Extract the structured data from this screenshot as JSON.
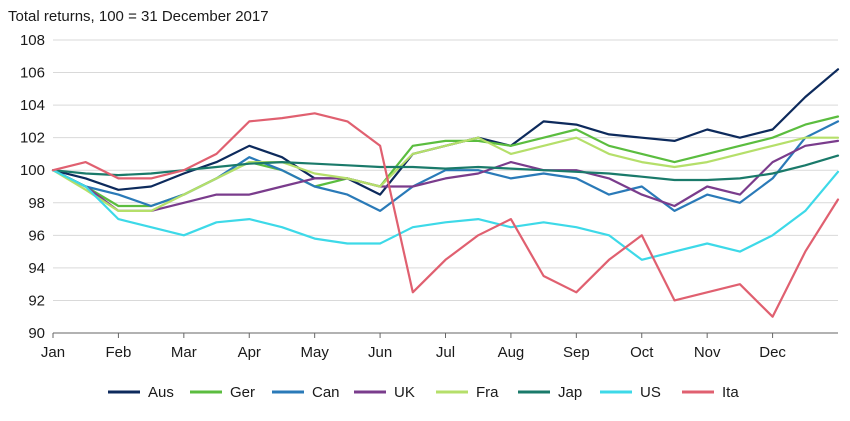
{
  "chart_data": {
    "type": "line",
    "subtitle": "Total returns, 100 = 31 December 2017",
    "xlabel": "",
    "ylabel": "",
    "ylim": [
      90,
      108
    ],
    "yticks": [
      90,
      92,
      94,
      96,
      98,
      100,
      102,
      104,
      106,
      108
    ],
    "x_ticklabels": [
      "Jan",
      "Feb",
      "Mar",
      "Apr",
      "May",
      "Jun",
      "Jul",
      "Aug",
      "Sep",
      "Oct",
      "Nov",
      "Dec"
    ],
    "grid": "horizontal",
    "legend": "bottom",
    "x": [
      "Jan-01",
      "Jan-15",
      "Feb-01",
      "Feb-15",
      "Mar-01",
      "Mar-15",
      "Apr-01",
      "Apr-15",
      "May-01",
      "May-15",
      "Jun-01",
      "Jun-15",
      "Jul-01",
      "Jul-15",
      "Aug-01",
      "Aug-15",
      "Sep-01",
      "Sep-15",
      "Oct-01",
      "Oct-15",
      "Nov-01",
      "Nov-15",
      "Dec-01",
      "Dec-15",
      "Dec-31"
    ],
    "series": [
      {
        "name": "Aus",
        "color": "#0d2a5c",
        "values": [
          100.0,
          99.5,
          98.8,
          99.0,
          99.8,
          100.5,
          101.5,
          100.8,
          99.5,
          99.5,
          98.5,
          101.0,
          101.5,
          102.0,
          101.5,
          103.0,
          102.8,
          102.2,
          102.0,
          101.8,
          102.5,
          102.0,
          102.5,
          104.5,
          106.2
        ]
      },
      {
        "name": "Ger",
        "color": "#5bbd3f",
        "values": [
          100.0,
          99.0,
          97.8,
          97.8,
          98.5,
          99.5,
          100.5,
          100.0,
          99.0,
          99.5,
          99.0,
          101.5,
          101.8,
          101.8,
          101.5,
          102.0,
          102.5,
          101.5,
          101.0,
          100.5,
          101.0,
          101.5,
          102.0,
          102.8,
          103.3
        ]
      },
      {
        "name": "Can",
        "color": "#2a7ab8",
        "values": [
          100.0,
          99.0,
          98.5,
          97.8,
          98.5,
          99.5,
          100.8,
          100.0,
          99.0,
          98.5,
          97.5,
          99.0,
          100.0,
          100.0,
          99.5,
          99.8,
          99.5,
          98.5,
          99.0,
          97.5,
          98.5,
          98.0,
          99.5,
          102.0,
          103.0
        ]
      },
      {
        "name": "UK",
        "color": "#7a3c8c",
        "values": [
          100.0,
          99.0,
          97.5,
          97.5,
          98.0,
          98.5,
          98.5,
          99.0,
          99.5,
          99.5,
          99.0,
          99.0,
          99.5,
          99.8,
          100.5,
          100.0,
          100.0,
          99.5,
          98.5,
          97.8,
          99.0,
          98.5,
          100.5,
          101.5,
          101.8
        ]
      },
      {
        "name": "Fra",
        "color": "#b5df6a",
        "values": [
          100.0,
          98.8,
          97.5,
          97.5,
          98.5,
          99.5,
          100.5,
          100.5,
          99.8,
          99.5,
          99.0,
          101.0,
          101.5,
          102.0,
          101.0,
          101.5,
          102.0,
          101.0,
          100.5,
          100.2,
          100.5,
          101.0,
          101.5,
          102.0,
          102.0
        ]
      },
      {
        "name": "Jap",
        "color": "#1a7a6a",
        "values": [
          100.0,
          99.8,
          99.7,
          99.8,
          100.0,
          100.2,
          100.4,
          100.5,
          100.4,
          100.3,
          100.2,
          100.2,
          100.1,
          100.2,
          100.1,
          100.0,
          99.9,
          99.8,
          99.6,
          99.4,
          99.4,
          99.5,
          99.8,
          100.3,
          100.9
        ]
      },
      {
        "name": "US",
        "color": "#3dd9e8",
        "values": [
          100.0,
          99.0,
          97.0,
          96.5,
          96.0,
          96.8,
          97.0,
          96.5,
          95.8,
          95.5,
          95.5,
          96.5,
          96.8,
          97.0,
          96.5,
          96.8,
          96.5,
          96.0,
          94.5,
          95.0,
          95.5,
          95.0,
          96.0,
          97.5,
          99.9
        ]
      },
      {
        "name": "Ita",
        "color": "#e06070",
        "values": [
          100.0,
          100.5,
          99.5,
          99.5,
          100.0,
          101.0,
          103.0,
          103.2,
          103.5,
          103.0,
          101.5,
          92.5,
          94.5,
          96.0,
          97.0,
          93.5,
          92.5,
          94.5,
          96.0,
          92.0,
          92.5,
          93.0,
          91.0,
          95.0,
          98.2
        ]
      }
    ]
  }
}
